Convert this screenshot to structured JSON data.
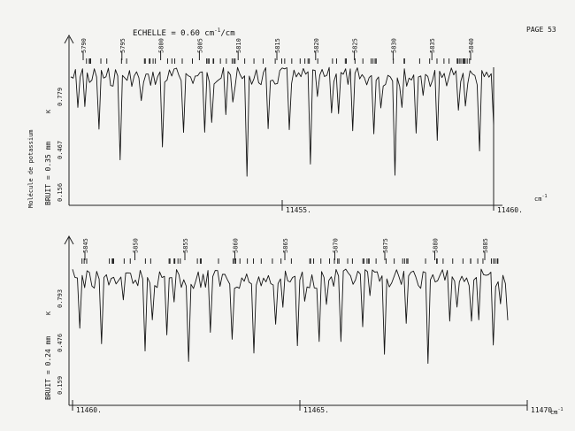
{
  "header": {
    "scale_label": "ECHELLE = 0.60 cm",
    "scale_exp": "-1",
    "scale_suffix": "/cm",
    "page_label": "PAGE 53"
  },
  "unit_label": "cm",
  "unit_exp": "-1",
  "panels": [
    {
      "x_start": 11450,
      "x_end": 11460,
      "x_ticks": [
        {
          "label": "11455.",
          "value": 11455
        },
        {
          "label": "11460.",
          "value": 11460
        }
      ],
      "y_labels": [
        "0.779",
        "0.467",
        "0.156"
      ],
      "noise_label": "BRUIT = 0.35 mm",
      "molecule_label": "Molécule de potassium",
      "marker_label": "K",
      "line_numbers": [
        "5790",
        "5795",
        "5800",
        "5805",
        "5810",
        "5815",
        "5820",
        "5825",
        "5830",
        "5835",
        "5840"
      ]
    },
    {
      "x_start": 11460,
      "x_end": 11470,
      "x_ticks": [
        {
          "label": "11460.",
          "value": 11460
        },
        {
          "label": "11465.",
          "value": 11465
        },
        {
          "label": "11470.",
          "value": 11470
        }
      ],
      "y_labels": [
        "0.793",
        "0.476",
        "0.159"
      ],
      "noise_label": "BRUIT = 0.24 mm",
      "molecule_label": "",
      "marker_label": "K",
      "line_numbers": [
        "5845",
        "5850",
        "5855",
        "5860",
        "5865",
        "5870",
        "5875",
        "5880",
        "5885"
      ]
    }
  ],
  "chart_data": [
    {
      "type": "line",
      "title": "ECHELLE = 0.60 cm-1/cm",
      "xlabel": "cm-1",
      "ylabel": "BRUIT = 0.35 mm",
      "xlim": [
        11450,
        11460
      ],
      "y_tick_labels": [
        "0.779",
        "0.467",
        "0.156"
      ],
      "ylim": [
        0.156,
        0.779
      ],
      "series": [
        {
          "name": "",
          "x": [
            11450.0,
            11450.5,
            11451.0,
            11451.5,
            11452.0,
            11452.5,
            11453.0,
            11453.5,
            11454.0,
            11454.5,
            11455.0,
            11455.5,
            11456.0,
            11456.5,
            11457.0,
            11457.5,
            11458.0,
            11458.5,
            11459.0,
            11459.5,
            11460.0
          ],
          "values": [
            0.76,
            0.68,
            0.4,
            0.74,
            0.52,
            0.72,
            0.55,
            0.7,
            0.47,
            0.69,
            0.71,
            0.5,
            0.73,
            0.57,
            0.7,
            0.46,
            0.68,
            0.51,
            0.7,
            0.43,
            0.62
          ]
        }
      ]
    },
    {
      "type": "line",
      "xlabel": "cm-1",
      "ylabel": "BRUIT = 0.24 mm",
      "xlim": [
        11460,
        11470
      ],
      "y_tick_labels": [
        "0.793",
        "0.476",
        "0.159"
      ],
      "ylim": [
        0.159,
        0.793
      ],
      "series": [
        {
          "name": "",
          "x": [
            11460.0,
            11460.5,
            11461.0,
            11461.5,
            11462.0,
            11462.5,
            11463.0,
            11463.5,
            11464.0,
            11464.5,
            11465.0,
            11465.5,
            11466.0,
            11466.5,
            11467.0,
            11467.5,
            11468.0,
            11468.5,
            11469.0,
            11469.5,
            11470.0
          ],
          "values": [
            0.72,
            0.5,
            0.74,
            0.54,
            0.71,
            0.48,
            0.7,
            0.58,
            0.4,
            0.73,
            0.46,
            0.69,
            0.49,
            0.72,
            0.55,
            0.71,
            0.5,
            0.74,
            0.6,
            0.45,
            0.66
          ]
        }
      ]
    }
  ]
}
